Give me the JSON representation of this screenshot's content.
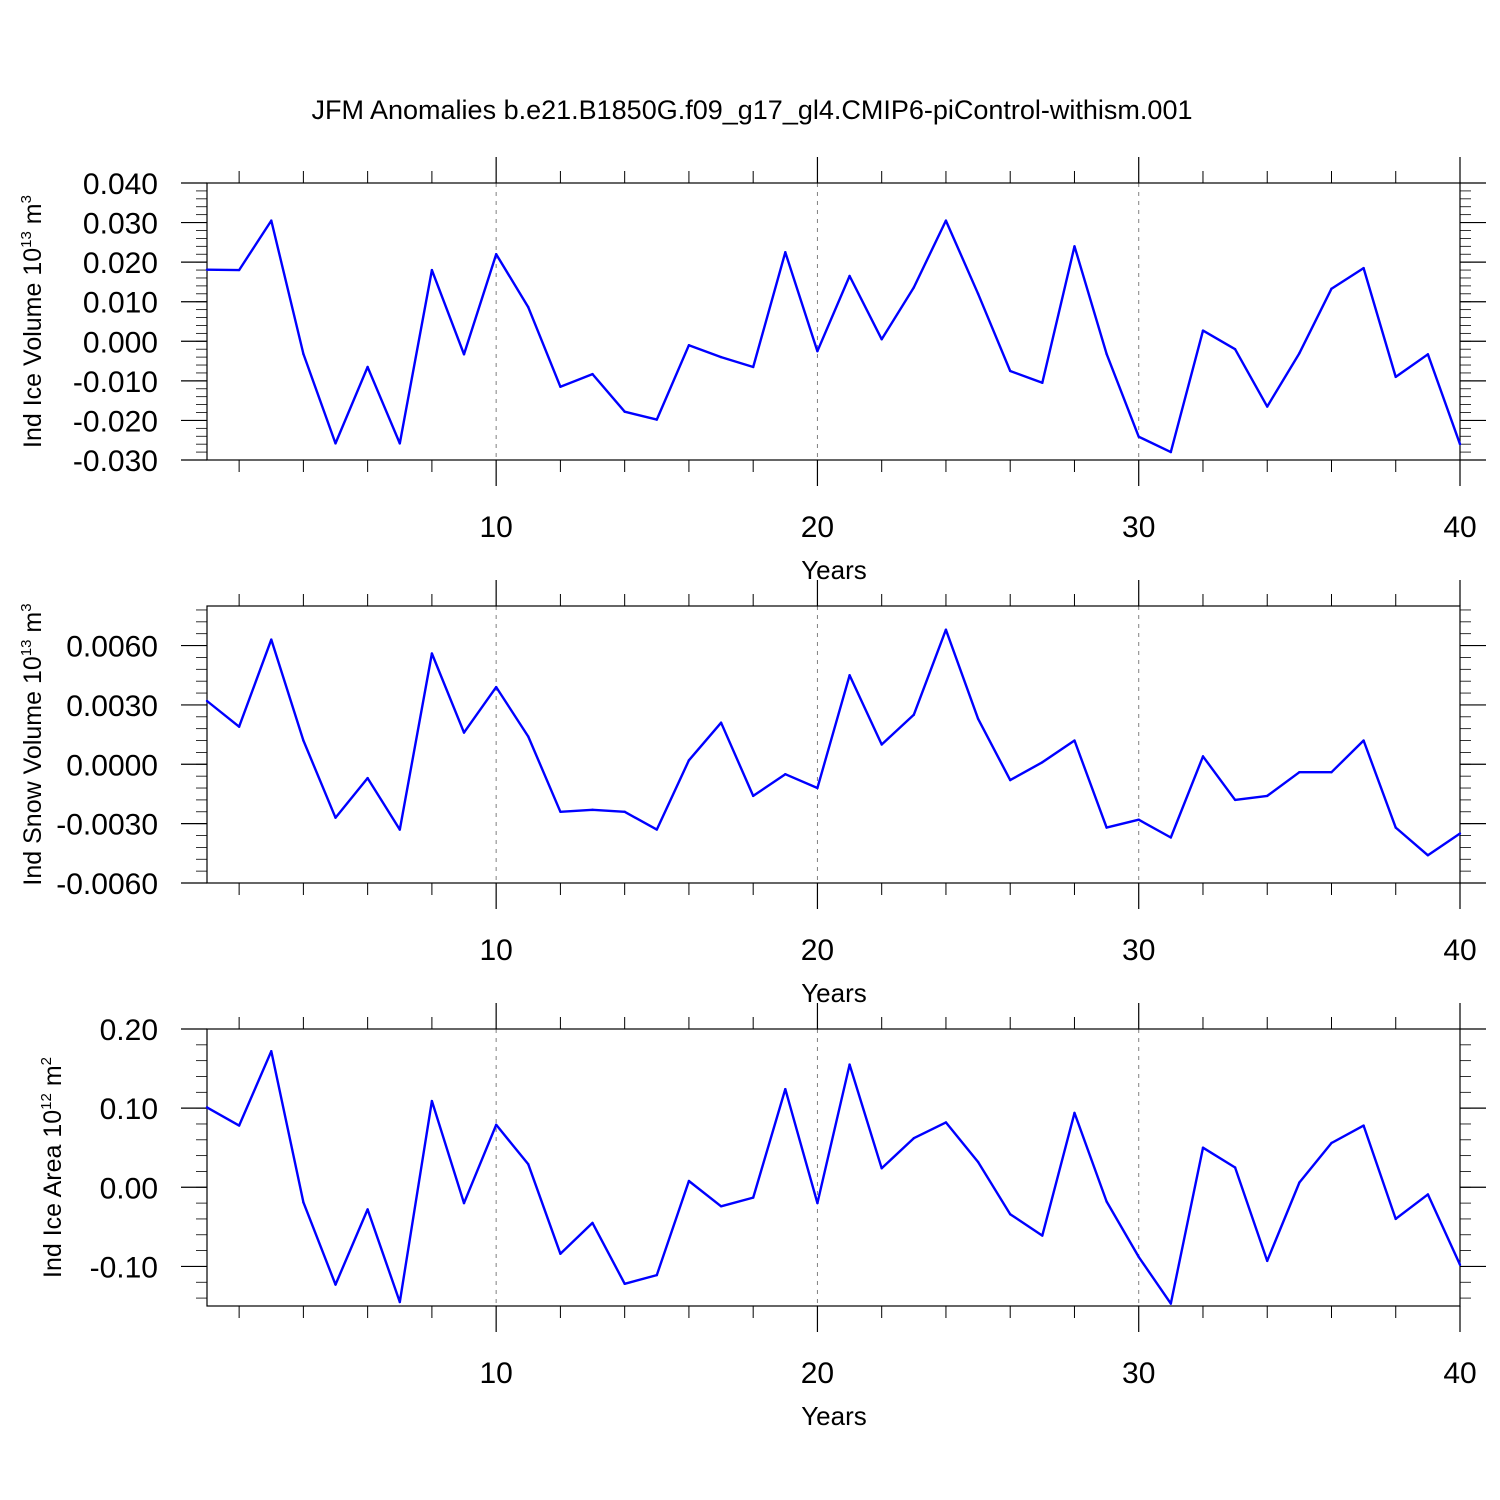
{
  "title": "JFM Anomalies b.e21.B1850G.f09_g17_gl4.CMIP6-piControl-withism.001",
  "colors": {
    "series": "#0000ff",
    "axis": "#000000",
    "grid": "#808080"
  },
  "chart_data": [
    {
      "type": "line",
      "ylabel": {
        "main": "Ind Ice Volume 10",
        "exponent": "13",
        "unit": " m",
        "unit_exponent": "3"
      },
      "xlabel": "Years",
      "xlim": [
        1,
        40
      ],
      "ylim": [
        -0.03,
        0.04
      ],
      "xticks": [
        10,
        20,
        30,
        40
      ],
      "yticks": [
        -0.03,
        -0.02,
        -0.01,
        0.0,
        0.01,
        0.02,
        0.03,
        0.04
      ],
      "ytick_labels": [
        "-0.030",
        "-0.020",
        "-0.010",
        "0.000",
        "0.010",
        "0.020",
        "0.030",
        "0.040"
      ],
      "grid": "dashed vertical at major x ticks",
      "x": [
        1,
        2,
        3,
        4,
        5,
        6,
        7,
        8,
        9,
        10,
        11,
        12,
        13,
        14,
        15,
        16,
        17,
        18,
        19,
        20,
        21,
        22,
        23,
        24,
        25,
        26,
        27,
        28,
        29,
        30,
        31,
        32,
        33,
        34,
        35,
        36,
        37,
        38,
        39,
        40
      ],
      "values": [
        0.0181,
        0.018,
        0.0305,
        -0.0032,
        -0.0258,
        -0.0065,
        -0.0258,
        0.018,
        -0.0033,
        0.022,
        0.0086,
        -0.0115,
        -0.0083,
        -0.0178,
        -0.0198,
        -0.001,
        -0.004,
        -0.0065,
        0.0225,
        -0.0025,
        0.0165,
        0.0005,
        0.0136,
        0.0305,
        0.012,
        -0.0075,
        -0.0105,
        0.024,
        -0.0032,
        -0.0241,
        -0.028,
        0.0027,
        -0.002,
        -0.0165,
        -0.003,
        0.0133,
        0.0185,
        -0.009,
        -0.0033,
        -0.026
      ]
    },
    {
      "type": "line",
      "ylabel": {
        "main": "Ind Snow Volume 10",
        "exponent": "13",
        "unit": " m",
        "unit_exponent": "3"
      },
      "xlabel": "Years",
      "xlim": [
        1,
        40
      ],
      "ylim": [
        -0.006,
        0.008
      ],
      "xticks": [
        10,
        20,
        30,
        40
      ],
      "yticks": [
        -0.006,
        -0.003,
        0.0,
        0.003,
        0.006
      ],
      "ytick_labels": [
        "-0.0060",
        "-0.0030",
        "0.0000",
        "0.0030",
        "0.0060"
      ],
      "grid": "dashed vertical at major x ticks",
      "x": [
        1,
        2,
        3,
        4,
        5,
        6,
        7,
        8,
        9,
        10,
        11,
        12,
        13,
        14,
        15,
        16,
        17,
        18,
        19,
        20,
        21,
        22,
        23,
        24,
        25,
        26,
        27,
        28,
        29,
        30,
        31,
        32,
        33,
        34,
        35,
        36,
        37,
        38,
        39,
        40
      ],
      "values": [
        0.0032,
        0.0019,
        0.0063,
        0.0012,
        -0.0027,
        -0.0007,
        -0.0033,
        0.0056,
        0.0016,
        0.0039,
        0.0014,
        -0.0024,
        -0.0023,
        -0.0024,
        -0.0033,
        0.0002,
        0.0021,
        -0.0016,
        -0.0005,
        -0.0012,
        0.0045,
        0.001,
        0.0025,
        0.0068,
        0.0023,
        -0.0008,
        0.0001,
        0.0012,
        -0.0032,
        -0.0028,
        -0.0037,
        0.0004,
        -0.0018,
        -0.0016,
        -0.0004,
        -0.0004,
        0.0012,
        -0.0032,
        -0.0046,
        -0.0035
      ]
    },
    {
      "type": "line",
      "ylabel": {
        "main": "Ind Ice Area 10",
        "exponent": "12",
        "unit": " m",
        "unit_exponent": "2"
      },
      "xlabel": "Years",
      "xlim": [
        1,
        40
      ],
      "ylim": [
        -0.15,
        0.2
      ],
      "xticks": [
        10,
        20,
        30,
        40
      ],
      "yticks": [
        -0.1,
        0.0,
        0.1,
        0.2
      ],
      "ytick_labels": [
        "-0.10",
        "0.00",
        "0.10",
        "0.20"
      ],
      "grid": "dashed vertical at major x ticks",
      "x": [
        1,
        2,
        3,
        4,
        5,
        6,
        7,
        8,
        9,
        10,
        11,
        12,
        13,
        14,
        15,
        16,
        17,
        18,
        19,
        20,
        21,
        22,
        23,
        24,
        25,
        26,
        27,
        28,
        29,
        30,
        31,
        32,
        33,
        34,
        35,
        36,
        37,
        38,
        39,
        40
      ],
      "values": [
        0.101,
        0.078,
        0.172,
        -0.019,
        -0.123,
        -0.028,
        -0.145,
        0.109,
        -0.02,
        0.079,
        0.029,
        -0.084,
        -0.045,
        -0.122,
        -0.111,
        0.008,
        -0.024,
        -0.013,
        0.124,
        -0.02,
        0.155,
        0.024,
        0.062,
        0.082,
        0.032,
        -0.034,
        -0.061,
        0.094,
        -0.018,
        -0.088,
        -0.147,
        0.05,
        0.025,
        -0.093,
        0.006,
        0.056,
        0.078,
        -0.04,
        -0.009,
        -0.098
      ]
    }
  ]
}
